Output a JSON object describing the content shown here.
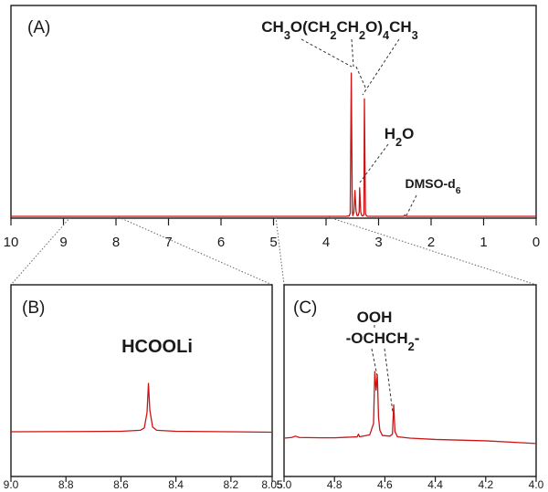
{
  "chart_data": [
    {
      "panel": "(A)",
      "type": "line",
      "xlim": [
        10,
        0
      ],
      "xticks": [
        10,
        9,
        8,
        7,
        6,
        5,
        4,
        3,
        2,
        1,
        0
      ],
      "x_reversed": true,
      "grid": false,
      "series": [
        {
          "x": [
            10,
            4.2,
            3.62,
            3.56,
            3.54,
            3.52,
            3.5,
            3.49,
            3.47,
            3.45,
            3.43,
            3.41,
            3.39,
            3.37,
            3.36,
            3.34,
            3.32,
            3.3,
            3.28,
            3.27,
            3.25,
            3.23,
            3.21,
            2.52,
            2.5,
            2.48,
            0
          ],
          "y": [
            0,
            0,
            0,
            0.003,
            0.02,
            1.0,
            0.03,
            0.005,
            0.03,
            0.18,
            0.04,
            0.005,
            0.005,
            0.03,
            0.2,
            0.03,
            0.005,
            0.003,
            0.01,
            0.82,
            0.02,
            0.003,
            0,
            0,
            0.01,
            0,
            0
          ],
          "color": "#cc1414"
        }
      ],
      "annotations": [
        {
          "label_parts": [
            [
              "CH",
              ""
            ],
            [
              "3",
              "sub"
            ],
            [
              "O(CH",
              ""
            ],
            [
              "2",
              "sub"
            ],
            [
              "CH",
              ""
            ],
            [
              "2",
              "sub"
            ],
            [
              "O)",
              ""
            ],
            [
              "4",
              "sub"
            ],
            [
              "CH",
              ""
            ],
            [
              "3",
              "sub"
            ]
          ],
          "points_to": [
            3.52,
            3.27
          ]
        },
        {
          "label_parts": [
            [
              "H",
              ""
            ],
            [
              "2",
              "sub"
            ],
            [
              "O",
              ""
            ]
          ],
          "points_to": [
            3.36
          ]
        },
        {
          "label_parts": [
            [
              "DMSO-d",
              ""
            ],
            [
              "6",
              "sub"
            ]
          ],
          "points_to": [
            2.5
          ]
        }
      ]
    },
    {
      "panel": "(B)",
      "type": "line",
      "xlim": [
        9.0,
        8.05
      ],
      "xticks": [
        9.0,
        8.8,
        8.6,
        8.4,
        8.2,
        8.05
      ],
      "xtick_labels": [
        "9.0",
        "8.8",
        "8.6",
        "8.4",
        "8.2",
        "8.05"
      ],
      "x_reversed": true,
      "grid": false,
      "series": [
        {
          "x": [
            9.0,
            8.75,
            8.6,
            8.53,
            8.515,
            8.505,
            8.5,
            8.495,
            8.485,
            8.47,
            8.4,
            8.2,
            8.05
          ],
          "y": [
            0.0,
            0.005,
            0.01,
            0.03,
            0.08,
            0.4,
            1.0,
            0.45,
            0.1,
            0.03,
            0.01,
            0.0,
            -0.01
          ],
          "color": "#cc1414"
        }
      ],
      "annotations": [
        {
          "label_parts": [
            [
              "HCOOLi",
              ""
            ]
          ]
        }
      ]
    },
    {
      "panel": "(C)",
      "type": "line",
      "xlim": [
        5.0,
        4.0
      ],
      "xticks": [
        5.0,
        4.8,
        4.6,
        4.4,
        4.2,
        4.0
      ],
      "xtick_labels": [
        "5.0",
        "4.8",
        "4.6",
        "4.4",
        "4.2",
        "4.0"
      ],
      "x_reversed": true,
      "grid": false,
      "series": [
        {
          "x": [
            5.0,
            4.97,
            4.955,
            4.94,
            4.85,
            4.8,
            4.71,
            4.705,
            4.7,
            4.66,
            4.645,
            4.64,
            4.635,
            4.63,
            4.625,
            4.62,
            4.61,
            4.58,
            4.57,
            4.565,
            4.56,
            4.55,
            4.5,
            4.4,
            4.3,
            4.2,
            4.1,
            4.0
          ],
          "y": [
            0.0,
            0.01,
            0.03,
            0.01,
            0.005,
            0.005,
            0.02,
            0.06,
            0.02,
            0.05,
            0.22,
            1.0,
            0.72,
            0.95,
            0.3,
            0.12,
            0.04,
            0.03,
            0.06,
            0.5,
            0.1,
            0.02,
            0.0,
            -0.02,
            -0.03,
            -0.04,
            -0.06,
            -0.08
          ],
          "color": "#cc1414"
        }
      ],
      "annotations": [
        {
          "label_parts": [
            [
              "OOH",
              ""
            ]
          ]
        },
        {
          "label_parts": [
            [
              "-OCHCH",
              ""
            ],
            [
              "2",
              "sub"
            ],
            [
              "-",
              ""
            ]
          ],
          "points_to": [
            4.635,
            4.565
          ]
        }
      ]
    }
  ]
}
